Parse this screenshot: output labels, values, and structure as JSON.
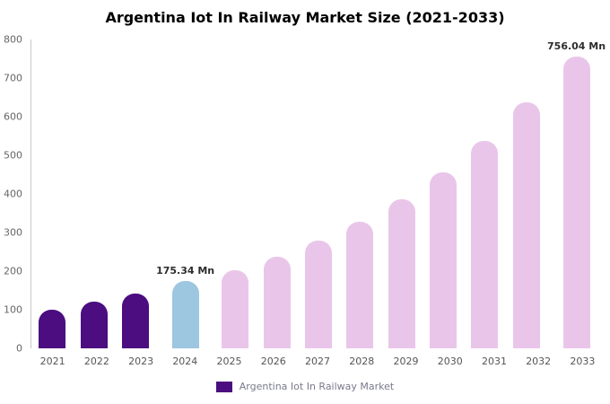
{
  "title": "Argentina Iot In Railway Market Size (2021-2033)",
  "chart_data": {
    "type": "bar",
    "title": "Argentina Iot In Railway Market Size (2021-2033)",
    "unit": "Mn",
    "categories": [
      "2021",
      "2022",
      "2023",
      "2024",
      "2025",
      "2026",
      "2027",
      "2028",
      "2029",
      "2030",
      "2031",
      "2032",
      "2033"
    ],
    "values": [
      101,
      120,
      143,
      175.34,
      203,
      237,
      278,
      328,
      386,
      457,
      538,
      637,
      756.04
    ],
    "segments": [
      "historical",
      "historical",
      "historical",
      "highlight",
      "forecast",
      "forecast",
      "forecast",
      "forecast",
      "forecast",
      "forecast",
      "forecast",
      "forecast",
      "forecast"
    ],
    "colors": {
      "historical": "#4b0d80",
      "highlight": "#9dc6e0",
      "forecast": "#e9c6e9"
    },
    "annotations": {
      "2024": "175.34 Mn",
      "2033": "756.04 Mn"
    },
    "xlabel": "",
    "ylabel": "",
    "ylim": [
      0,
      800
    ],
    "yticks": [
      0,
      100,
      200,
      300,
      400,
      500,
      600,
      700,
      800
    ],
    "grid": false,
    "legend_position": "bottom",
    "legend": [
      {
        "label": "Argentina Iot In Railway Market",
        "color": "#4b0d80"
      }
    ]
  }
}
